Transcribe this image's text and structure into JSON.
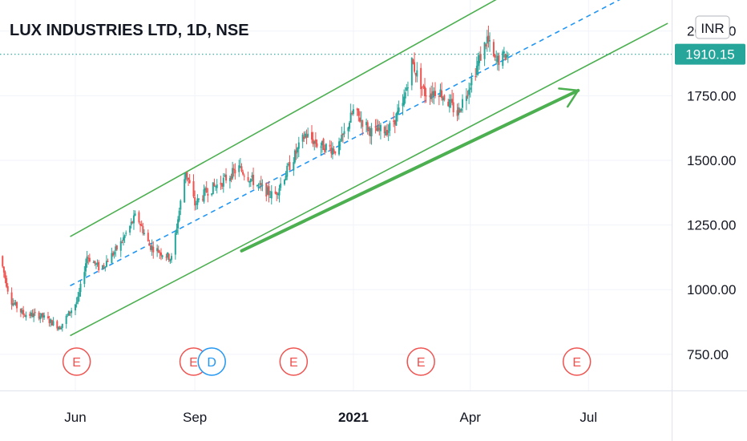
{
  "chart_data": {
    "type": "candlestick",
    "title": "LUX INDUSTRIES LTD, 1D, NSE",
    "currency": "INR",
    "last_price": "1910.15",
    "y_ticks": [
      "2000.00",
      "1750.00",
      "1500.00",
      "1250.00",
      "1000.00",
      "750.00"
    ],
    "y_tick_values": [
      2000,
      1750,
      1500,
      1250,
      1000,
      750
    ],
    "ylim": [
      610,
      2120
    ],
    "x_ticks": [
      {
        "label": "Jun",
        "date": "2020-06-01",
        "bold": false
      },
      {
        "label": "Sep",
        "date": "2020-09-01",
        "bold": false
      },
      {
        "label": "2021",
        "date": "2021-01-01",
        "bold": true
      },
      {
        "label": "Apr",
        "date": "2021-04-01",
        "bold": false
      },
      {
        "label": "Jul",
        "date": "2021-07-01",
        "bold": false
      }
    ],
    "xlim": [
      "2020-04-04",
      "2021-09-03"
    ],
    "grid": true,
    "up_color": "#26a69a",
    "down_color": "#ef5350",
    "accent_color": "#26a69a",
    "channel_color": "#4caf50",
    "midline_color": "#2196f3",
    "price_path": [
      {
        "date": "2020-04-04",
        "price": 1130
      },
      {
        "date": "2020-04-12",
        "price": 960
      },
      {
        "date": "2020-04-22",
        "price": 905
      },
      {
        "date": "2020-05-05",
        "price": 900
      },
      {
        "date": "2020-05-20",
        "price": 855
      },
      {
        "date": "2020-06-03",
        "price": 960
      },
      {
        "date": "2020-06-10",
        "price": 1130
      },
      {
        "date": "2020-06-20",
        "price": 1080
      },
      {
        "date": "2020-07-05",
        "price": 1170
      },
      {
        "date": "2020-07-18",
        "price": 1290
      },
      {
        "date": "2020-07-28",
        "price": 1170
      },
      {
        "date": "2020-08-14",
        "price": 1120
      },
      {
        "date": "2020-08-25",
        "price": 1460
      },
      {
        "date": "2020-09-01",
        "price": 1330
      },
      {
        "date": "2020-09-10",
        "price": 1380
      },
      {
        "date": "2020-09-20",
        "price": 1410
      },
      {
        "date": "2020-10-05",
        "price": 1470
      },
      {
        "date": "2020-10-20",
        "price": 1400
      },
      {
        "date": "2020-11-01",
        "price": 1360
      },
      {
        "date": "2020-11-12",
        "price": 1470
      },
      {
        "date": "2020-11-25",
        "price": 1600
      },
      {
        "date": "2020-12-05",
        "price": 1560
      },
      {
        "date": "2020-12-20",
        "price": 1540
      },
      {
        "date": "2021-01-01",
        "price": 1690
      },
      {
        "date": "2021-01-15",
        "price": 1610
      },
      {
        "date": "2021-01-28",
        "price": 1620
      },
      {
        "date": "2021-02-08",
        "price": 1710
      },
      {
        "date": "2021-02-15",
        "price": 1880
      },
      {
        "date": "2021-02-25",
        "price": 1760
      },
      {
        "date": "2021-03-08",
        "price": 1770
      },
      {
        "date": "2021-03-22",
        "price": 1680
      },
      {
        "date": "2021-04-05",
        "price": 1850
      },
      {
        "date": "2021-04-14",
        "price": 1970
      },
      {
        "date": "2021-04-20",
        "price": 1880
      },
      {
        "date": "2021-04-30",
        "price": 1910
      }
    ],
    "event_markers": [
      {
        "label": "E",
        "date": "2020-06-02",
        "color": "#ef5350"
      },
      {
        "label": "E",
        "date": "2020-08-31",
        "color": "#ef5350"
      },
      {
        "label": "D",
        "date": "2020-09-14",
        "color": "#2196f3"
      },
      {
        "label": "E",
        "date": "2020-11-16",
        "color": "#ef5350"
      },
      {
        "label": "E",
        "date": "2021-02-22",
        "color": "#ef5350"
      },
      {
        "label": "E",
        "date": "2021-06-22",
        "color": "#ef5350"
      }
    ],
    "channel": {
      "upper": [
        {
          "date": "2020-05-28",
          "price": 1205
        },
        {
          "date": "2021-06-04",
          "price": 2245
        }
      ],
      "lower": [
        {
          "date": "2020-05-28",
          "price": 822
        },
        {
          "date": "2021-08-31",
          "price": 2030
        }
      ],
      "midline": [
        {
          "date": "2020-05-28",
          "price": 1015
        },
        {
          "date": "2021-08-24",
          "price": 2200
        }
      ],
      "arrow": [
        {
          "date": "2020-10-07",
          "price": 1150
        },
        {
          "date": "2021-06-23",
          "price": 1770
        }
      ]
    }
  }
}
